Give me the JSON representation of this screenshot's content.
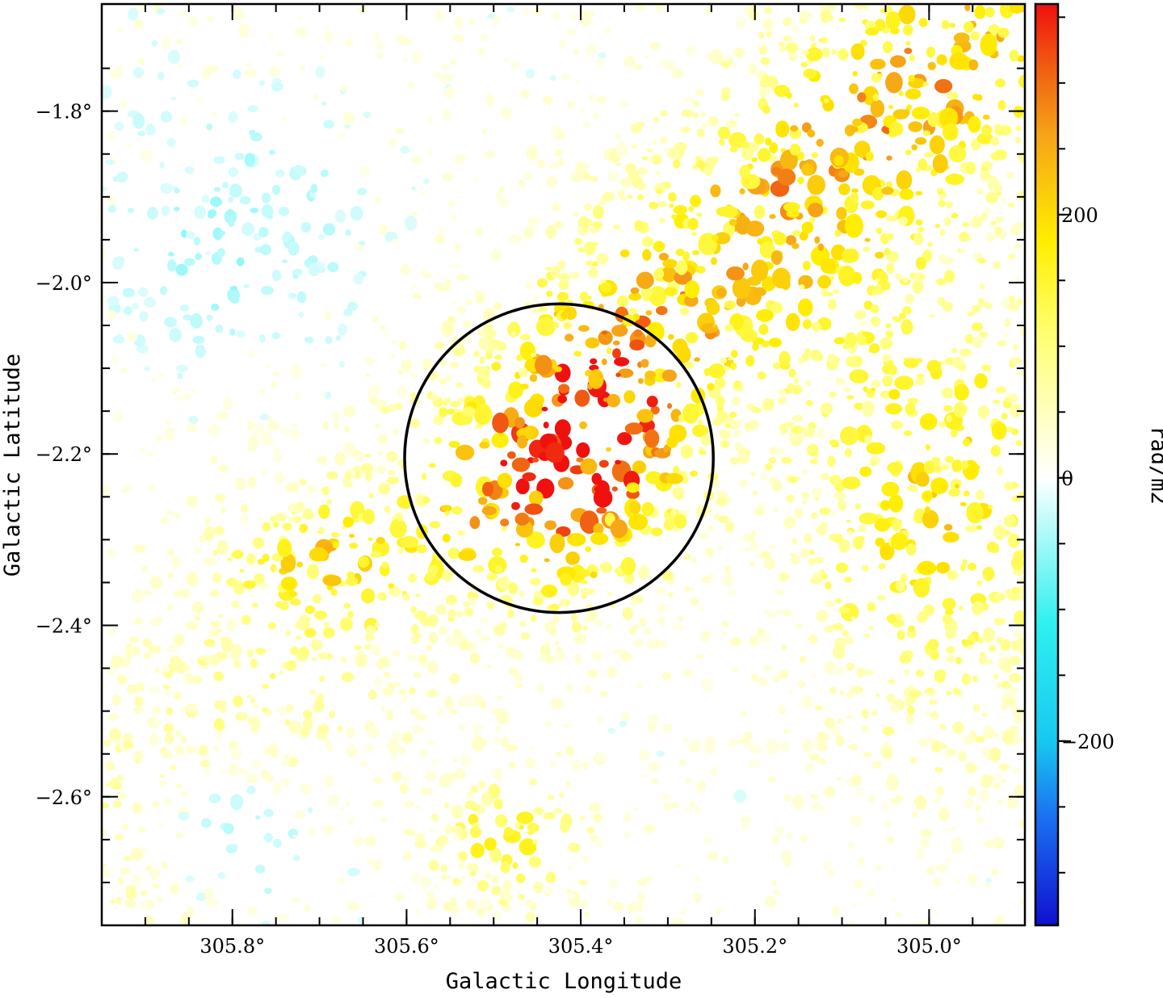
{
  "chart_data": {
    "type": "heatmap",
    "title": "",
    "xlabel": "Galactic Longitude",
    "ylabel": "Galactic Latitude",
    "x_axis": {
      "range": [
        305.95,
        304.89
      ],
      "reversed": true,
      "ticks": [
        305.8,
        305.6,
        305.4,
        305.2,
        305.0
      ],
      "tick_labels": [
        "305.8°",
        "305.6°",
        "305.4°",
        "305.2°",
        "305.0°"
      ]
    },
    "y_axis": {
      "range": [
        -2.75,
        -1.675
      ],
      "ticks": [
        -1.8,
        -2.0,
        -2.2,
        -2.4,
        -2.6
      ],
      "tick_labels": [
        "−1.8°",
        "−2.0°",
        "−2.2°",
        "−2.4°",
        "−2.6°"
      ]
    },
    "colorbar": {
      "label": "rad/m2",
      "range": [
        -340,
        360
      ],
      "ticks": [
        200,
        0,
        -200
      ],
      "tick_labels": [
        "200",
        "0",
        "−200"
      ],
      "colormap_stops": [
        {
          "value": -340,
          "color": "#1010d0"
        },
        {
          "value": -260,
          "color": "#1a6ef0"
        },
        {
          "value": -200,
          "color": "#18c8f0"
        },
        {
          "value": -110,
          "color": "#30f0f0"
        },
        {
          "value": 0,
          "color": "#ffffff"
        },
        {
          "value": 110,
          "color": "#ffff70"
        },
        {
          "value": 180,
          "color": "#ffee00"
        },
        {
          "value": 260,
          "color": "#f6a418"
        },
        {
          "value": 310,
          "color": "#f06012"
        },
        {
          "value": 360,
          "color": "#f01010"
        }
      ]
    },
    "annotations": [
      {
        "type": "circle",
        "center_l": 305.425,
        "center_b": -2.205,
        "radius_deg": 0.18,
        "color": "#000000"
      }
    ],
    "grid": false
  }
}
